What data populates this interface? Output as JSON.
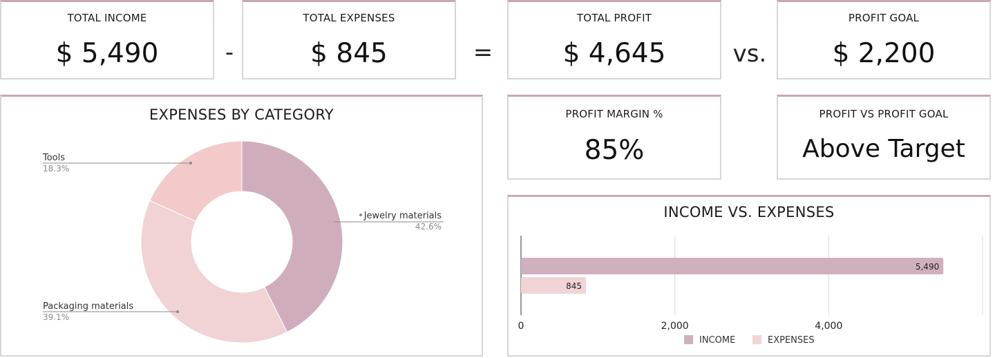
{
  "kpis": {
    "income": {
      "label": "TOTAL INCOME",
      "value": "$ 5,490"
    },
    "expenses": {
      "label": "TOTAL EXPENSES",
      "value": "$ 845"
    },
    "profit": {
      "label": "TOTAL PROFIT",
      "value": "$ 4,645"
    },
    "goal": {
      "label": "PROFIT GOAL",
      "value": "$ 2,200"
    },
    "margin": {
      "label": "PROFIT MARGIN %",
      "value": "85%"
    },
    "status": {
      "label": "PROFIT VS PROFIT GOAL",
      "value": "Above Target"
    }
  },
  "operators": {
    "minus": "-",
    "equals": "=",
    "versus": "vs."
  },
  "colors": {
    "accent": "#c9a8b6",
    "income": "#cfb0bf",
    "expenses": "#f2d4d6",
    "tools": "#f4c9ca",
    "jewelry": "#d0adbd",
    "packaging": "#f1d2d5"
  },
  "chart_data": [
    {
      "type": "pie",
      "title": "EXPENSES BY CATEGORY",
      "donut": true,
      "slices": [
        {
          "label": "Jewelry materials",
          "value": 42.6,
          "pct_label": "42.6%"
        },
        {
          "label": "Packaging materials",
          "value": 39.1,
          "pct_label": "39.1%"
        },
        {
          "label": "Tools",
          "value": 18.3,
          "pct_label": "18.3%"
        }
      ]
    },
    {
      "type": "bar",
      "orientation": "horizontal",
      "title": "INCOME VS. EXPENSES",
      "series": [
        {
          "name": "INCOME",
          "value": 5490,
          "value_label": "5,490"
        },
        {
          "name": "EXPENSES",
          "value": 845,
          "value_label": "845"
        }
      ],
      "xlim": [
        0,
        6000
      ],
      "xticks": [
        0,
        2000,
        4000
      ],
      "xtick_labels": [
        "0",
        "2,000",
        "4,000"
      ],
      "grid": true,
      "legend": "bottom"
    }
  ]
}
